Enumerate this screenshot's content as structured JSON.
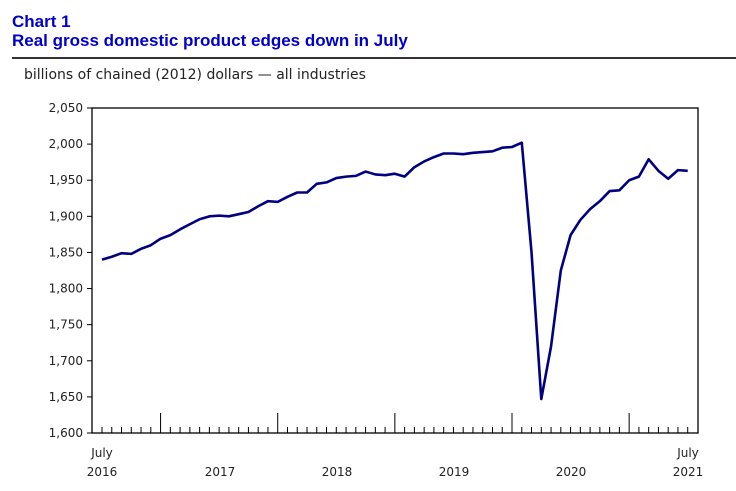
{
  "header": {
    "chart_number": "Chart 1",
    "title": "Real gross domestic product edges down in July",
    "units_label": "billions of chained (2012) dollars — all industries"
  },
  "chart_data": {
    "type": "line",
    "title": "Real gross domestic product edges down in July",
    "ylabel": "billions of chained (2012) dollars — all industries",
    "xlabel": "",
    "ylim": [
      1600,
      2050
    ],
    "yticks": [
      1600,
      1650,
      1700,
      1750,
      1800,
      1850,
      1900,
      1950,
      2000,
      2050
    ],
    "ytick_labels": [
      "1,600",
      "1,650",
      "1,700",
      "1,750",
      "1,800",
      "1,850",
      "1,900",
      "1,950",
      "2,000",
      "2,050"
    ],
    "x_start_label": {
      "month": "July",
      "year": "2016"
    },
    "x_end_label": {
      "month": "July",
      "year": "2021"
    },
    "year_labels": [
      "2017",
      "2018",
      "2019",
      "2020"
    ],
    "grid": false,
    "legend": "none",
    "series": [
      {
        "name": "Real GDP, all industries",
        "color": "#000080",
        "values": [
          1840,
          1844,
          1849,
          1848,
          1855,
          1860,
          1869,
          1874,
          1882,
          1889,
          1896,
          1900,
          1901,
          1900,
          1903,
          1906,
          1914,
          1921,
          1920,
          1927,
          1933,
          1933,
          1945,
          1947,
          1953,
          1955,
          1956,
          1962,
          1958,
          1957,
          1959,
          1955,
          1968,
          1976,
          1982,
          1987,
          1987,
          1986,
          1988,
          1989,
          1990,
          1995,
          1996,
          2002,
          1850,
          1647,
          1720,
          1825,
          1874,
          1895,
          1910,
          1921,
          1935,
          1936,
          1950,
          1955,
          1979,
          1963,
          1952,
          1964,
          1963
        ]
      }
    ]
  }
}
